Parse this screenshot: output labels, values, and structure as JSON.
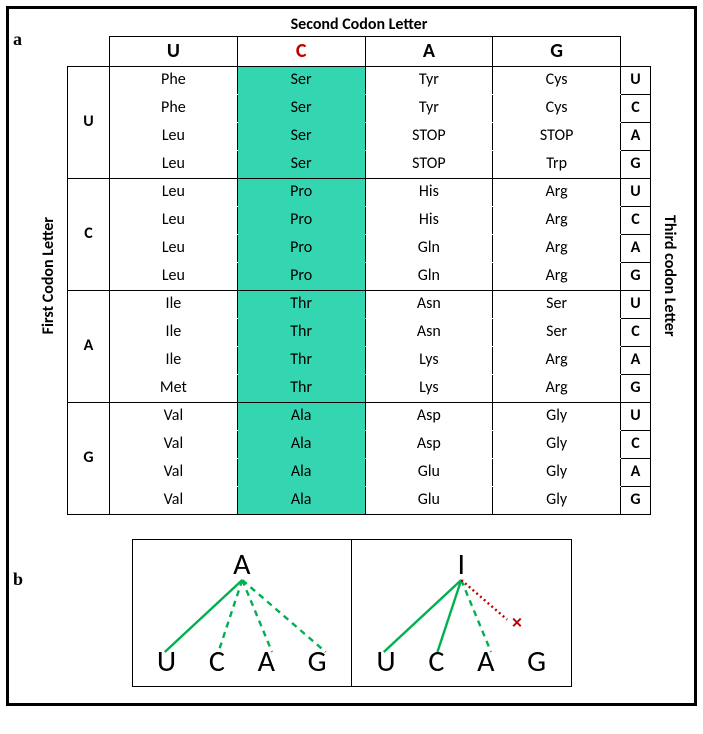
{
  "figure": {
    "panel_a_label": "a",
    "panel_b_label": "b",
    "titles": {
      "top": "Second Codon Letter",
      "left": "First Codon Letter",
      "right": "Third codon Letter"
    },
    "second_letters": [
      "U",
      "C",
      "A",
      "G"
    ],
    "first_letters": [
      "U",
      "C",
      "A",
      "G"
    ],
    "third_letters": [
      "U",
      "C",
      "A",
      "G"
    ],
    "highlight_column_index": 1,
    "highlight_color": "#33d6b0",
    "highlight_header_color": "#c00000",
    "codons": {
      "U": {
        "U": [
          "Phe",
          "Phe",
          "Leu",
          "Leu"
        ],
        "C": [
          "Ser",
          "Ser",
          "Ser",
          "Ser"
        ],
        "A": [
          "Tyr",
          "Tyr",
          "STOP",
          "STOP"
        ],
        "G": [
          "Cys",
          "Cys",
          "STOP",
          "Trp"
        ]
      },
      "C": {
        "U": [
          "Leu",
          "Leu",
          "Leu",
          "Leu"
        ],
        "C": [
          "Pro",
          "Pro",
          "Pro",
          "Pro"
        ],
        "A": [
          "His",
          "His",
          "Gln",
          "Gln"
        ],
        "G": [
          "Arg",
          "Arg",
          "Arg",
          "Arg"
        ]
      },
      "A": {
        "U": [
          "Ile",
          "Ile",
          "Ile",
          "Met"
        ],
        "C": [
          "Thr",
          "Thr",
          "Thr",
          "Thr"
        ],
        "A": [
          "Asn",
          "Asn",
          "Lys",
          "Lys"
        ],
        "G": [
          "Ser",
          "Ser",
          "Arg",
          "Arg"
        ]
      },
      "G": {
        "U": [
          "Val",
          "Val",
          "Val",
          "Val"
        ],
        "C": [
          "Ala",
          "Ala",
          "Ala",
          "Ala"
        ],
        "A": [
          "Asp",
          "Asp",
          "Glu",
          "Glu"
        ],
        "G": [
          "Gly",
          "Gly",
          "Gly",
          "Gly"
        ]
      }
    },
    "style": {
      "border_color": "#000000",
      "font_family": "Calibri",
      "header_fontsize_pt": 20,
      "cell_fontsize_pt": 16,
      "rowhead_fontsize_pt": 22
    }
  },
  "panel_b": {
    "left": {
      "top_letter": "A",
      "bottom_letters": [
        "U",
        "C",
        "A",
        "G"
      ],
      "edges": [
        {
          "to": 0,
          "style": "solid"
        },
        {
          "to": 1,
          "style": "dash"
        },
        {
          "to": 2,
          "style": "dash"
        },
        {
          "to": 3,
          "style": "dash"
        }
      ]
    },
    "right": {
      "top_letter": "I",
      "bottom_letters": [
        "U",
        "C",
        "A",
        "G"
      ],
      "edges": [
        {
          "to": 0,
          "style": "solid"
        },
        {
          "to": 1,
          "style": "solid"
        },
        {
          "to": 2,
          "style": "dash"
        },
        {
          "to": 3,
          "style": "dotred",
          "cross": true
        }
      ]
    },
    "colors": {
      "green": "#00b050",
      "red": "#c00000"
    },
    "letter_fontsize_pt": 30
  }
}
